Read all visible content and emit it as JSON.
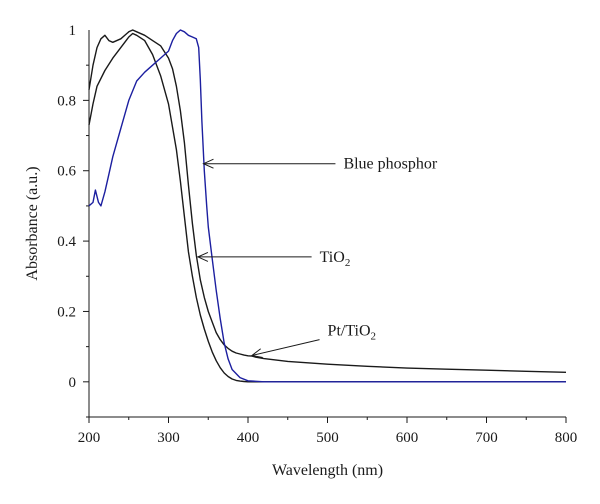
{
  "chart_data": {
    "type": "line",
    "title": "",
    "xlabel": "Wavelength (nm)",
    "ylabel": "Absorbance (a.u.)",
    "xlim": [
      200,
      800
    ],
    "ylim": [
      -0.1,
      1.0
    ],
    "x_ticks": [
      200,
      300,
      400,
      500,
      600,
      700,
      800
    ],
    "x_tick_labels": [
      "200",
      "300",
      "400",
      "500",
      "600",
      "700",
      "800"
    ],
    "y_ticks": [
      0,
      0.2,
      0.4,
      0.6,
      0.8,
      1.0
    ],
    "y_tick_labels": [
      "0",
      "0.2",
      "0.4",
      "0.6",
      "0.8",
      "1"
    ],
    "grid": false,
    "legend": "none",
    "series": [
      {
        "color": "#1a1a1a",
        "x": [
          200,
          205,
          210,
          215,
          220,
          225,
          230,
          240,
          250,
          255,
          260,
          270,
          280,
          290,
          300,
          305,
          310,
          315,
          320,
          325,
          330,
          335,
          340,
          345,
          350,
          355,
          360,
          365,
          370,
          375,
          380,
          385,
          390,
          395,
          400,
          405,
          410,
          420,
          450,
          500,
          550,
          600,
          650,
          700,
          750,
          800
        ],
        "y": [
          0.83,
          0.9,
          0.95,
          0.975,
          0.985,
          0.97,
          0.965,
          0.975,
          0.995,
          1.0,
          0.995,
          0.985,
          0.97,
          0.955,
          0.92,
          0.89,
          0.84,
          0.77,
          0.68,
          0.56,
          0.45,
          0.36,
          0.29,
          0.24,
          0.2,
          0.17,
          0.14,
          0.12,
          0.105,
          0.095,
          0.087,
          0.082,
          0.079,
          0.076,
          0.074,
          0.073,
          0.07,
          0.066,
          0.058,
          0.05,
          0.044,
          0.039,
          0.036,
          0.033,
          0.03,
          0.027
        ]
      },
      {
        "color": "#1a1a1a",
        "x": [
          200,
          205,
          210,
          220,
          230,
          240,
          250,
          255,
          260,
          270,
          280,
          290,
          300,
          310,
          315,
          320,
          325,
          330,
          335,
          340,
          345,
          350,
          355,
          360,
          365,
          370,
          375,
          380,
          385,
          390,
          395,
          400,
          410,
          420,
          450,
          500,
          800
        ],
        "y": [
          0.73,
          0.79,
          0.84,
          0.885,
          0.92,
          0.95,
          0.98,
          0.99,
          0.985,
          0.97,
          0.93,
          0.87,
          0.79,
          0.66,
          0.57,
          0.47,
          0.37,
          0.3,
          0.24,
          0.19,
          0.15,
          0.115,
          0.085,
          0.06,
          0.04,
          0.025,
          0.015,
          0.008,
          0.004,
          0.002,
          0.001,
          0.0,
          0.0,
          0.0,
          0.0,
          0.0,
          0.0
        ]
      },
      {
        "color": "#1c1fa0",
        "x": [
          200,
          205,
          208,
          212,
          215,
          220,
          225,
          230,
          240,
          250,
          260,
          270,
          280,
          290,
          300,
          305,
          310,
          315,
          320,
          325,
          330,
          335,
          338,
          340,
          342,
          345,
          348,
          350,
          355,
          360,
          365,
          370,
          375,
          380,
          390,
          400,
          420,
          450,
          500,
          800
        ],
        "y": [
          0.5,
          0.51,
          0.545,
          0.51,
          0.5,
          0.54,
          0.59,
          0.64,
          0.72,
          0.8,
          0.855,
          0.88,
          0.9,
          0.92,
          0.94,
          0.97,
          0.99,
          1.0,
          0.995,
          0.985,
          0.98,
          0.975,
          0.95,
          0.86,
          0.74,
          0.6,
          0.5,
          0.44,
          0.35,
          0.26,
          0.18,
          0.11,
          0.065,
          0.035,
          0.012,
          0.003,
          0.0,
          0.0,
          0.0,
          0.0
        ]
      }
    ],
    "annotations": [
      {
        "text": "Blue phosphor",
        "arrow_to_x": 344,
        "arrow_to_y": 0.62,
        "arrow_from_x": 510
      },
      {
        "text": "TiO",
        "sub": "2",
        "arrow_to_x": 337,
        "arrow_to_y": 0.355,
        "arrow_from_x": 480
      },
      {
        "text": "Pt/TiO",
        "sub": "2",
        "arrow_to_x": 405,
        "arrow_to_y": 0.075,
        "arrow_from_x": 490,
        "arrow_from_y": 0.12
      }
    ]
  }
}
